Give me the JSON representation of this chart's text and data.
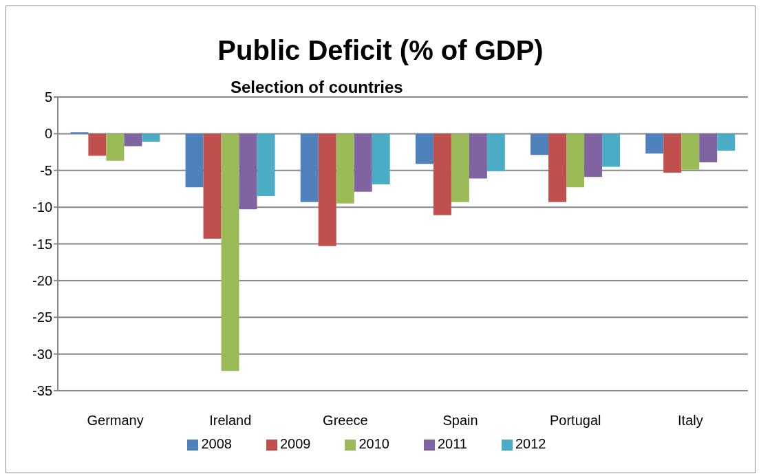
{
  "chart_data": {
    "type": "bar",
    "title": "Public Deficit (% of GDP)",
    "subtitle": "Selection of countries",
    "categories": [
      "Germany",
      "Ireland",
      "Greece",
      "Spain",
      "Portugal",
      "Italy"
    ],
    "series": [
      {
        "name": "2008",
        "color": "#4f81bd",
        "values": [
          0.2,
          -7.3,
          -9.3,
          -4.1,
          -2.9,
          -2.7
        ]
      },
      {
        "name": "2009",
        "color": "#c0504d",
        "values": [
          -3.0,
          -14.3,
          -15.3,
          -11.1,
          -9.3,
          -5.3
        ]
      },
      {
        "name": "2010",
        "color": "#9bbb59",
        "values": [
          -3.7,
          -32.3,
          -9.5,
          -9.3,
          -7.3,
          -4.9
        ]
      },
      {
        "name": "2011",
        "color": "#8064a2",
        "values": [
          -1.7,
          -10.3,
          -7.9,
          -6.1,
          -5.9,
          -3.9
        ]
      },
      {
        "name": "2012",
        "color": "#4bacc6",
        "values": [
          -1.1,
          -8.5,
          -6.9,
          -5.1,
          -4.5,
          -2.3
        ]
      }
    ],
    "ylim": [
      -35,
      5
    ],
    "yticks": [
      -35,
      -30,
      -25,
      -20,
      -15,
      -10,
      -5,
      0,
      5
    ],
    "grid": "y",
    "legend": "bottom"
  }
}
